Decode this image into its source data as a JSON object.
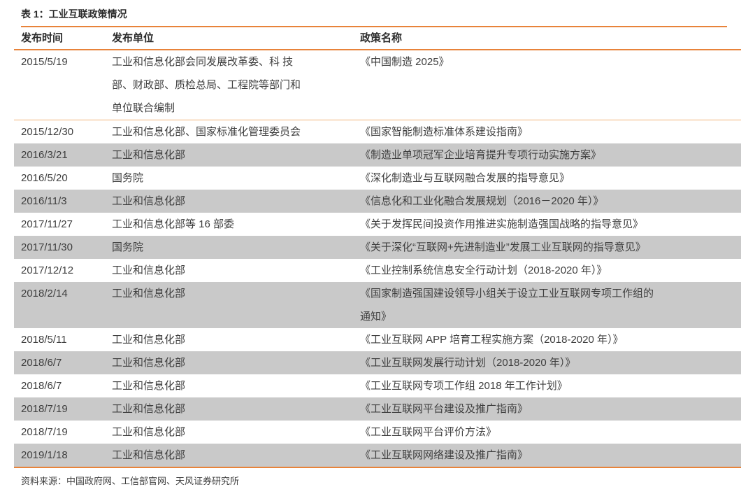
{
  "page": {
    "title": "表 1：工业互联政策情况",
    "source": "资料来源：中国政府网、工信部官网、天风证券研究所"
  },
  "table": {
    "columns": [
      "发布时间",
      "发布单位",
      "政策名称"
    ],
    "rows": [
      {
        "date": "2015/5/19",
        "unit": "工业和信息化部会同发展改革委、科 技\n部、财政部、质检总局、工程院等部门和\n单位联合编制",
        "policy": "《中国制造 2025》",
        "shaded": false
      },
      {
        "date": "2015/12/30",
        "unit": "工业和信息化部、国家标准化管理委员会",
        "policy": "《国家智能制造标准体系建设指南》",
        "shaded": false
      },
      {
        "date": "2016/3/21",
        "unit": "工业和信息化部",
        "policy": "《制造业单项冠军企业培育提升专项行动实施方案》",
        "shaded": true
      },
      {
        "date": "2016/5/20",
        "unit": "国务院",
        "policy": "《深化制造业与互联网融合发展的指导意见》",
        "shaded": false
      },
      {
        "date": "2016/11/3",
        "unit": "工业和信息化部",
        "policy": "《信息化和工业化融合发展规划（2016－2020 年）》",
        "shaded": true
      },
      {
        "date": "2017/11/27",
        "unit": "工业和信息化部等 16 部委",
        "policy": "《关于发挥民间投资作用推进实施制造强国战略的指导意见》",
        "shaded": false
      },
      {
        "date": "2017/11/30",
        "unit": "国务院",
        "policy": "《关于深化“互联网+先进制造业”发展工业互联网的指导意见》",
        "shaded": true
      },
      {
        "date": "2017/12/12",
        "unit": "工业和信息化部",
        "policy": "《工业控制系统信息安全行动计划（2018-2020 年）》",
        "shaded": false
      },
      {
        "date": "2018/2/14",
        "unit": "工业和信息化部",
        "policy": "《国家制造强国建设领导小组关于设立工业互联网专项工作组的\n通知》",
        "shaded": true
      },
      {
        "date": "2018/5/11",
        "unit": "工业和信息化部",
        "policy": "《工业互联网 APP 培育工程实施方案（2018-2020 年）》",
        "shaded": false
      },
      {
        "date": "2018/6/7",
        "unit": "工业和信息化部",
        "policy": "《工业互联网发展行动计划（2018-2020 年）》",
        "shaded": true
      },
      {
        "date": "2018/6/7",
        "unit": "工业和信息化部",
        "policy": "《工业互联网专项工作组 2018 年工作计划》",
        "shaded": false
      },
      {
        "date": "2018/7/19",
        "unit": "工业和信息化部",
        "policy": "《工业互联网平台建设及推广指南》",
        "shaded": true
      },
      {
        "date": "2018/7/19",
        "unit": "工业和信息化部",
        "policy": "《工业互联网平台评价方法》",
        "shaded": false
      },
      {
        "date": "2019/1/18",
        "unit": "工业和信息化部",
        "policy": "《工业互联网网络建设及推广指南》",
        "shaded": true
      }
    ],
    "colors": {
      "accent_orange": "#e8833a",
      "separator_light_orange": "#f2b377",
      "row_shade_gray": "#c9c9c9"
    }
  }
}
